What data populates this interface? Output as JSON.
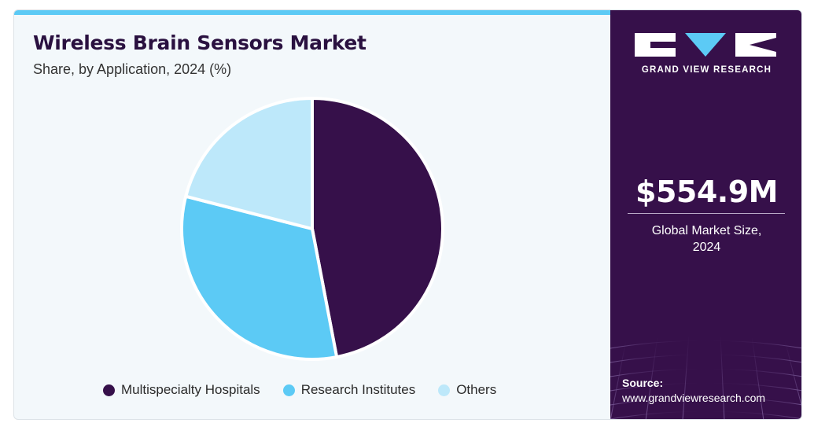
{
  "header": {
    "title": "Wireless Brain Sensors Market",
    "subtitle": "Share, by Application, 2024 (%)"
  },
  "colors": {
    "accent_bar": "#5ccaf5",
    "brand_dark": "#36104a",
    "panel_bg": "#f3f8fb"
  },
  "chart_data": {
    "type": "pie",
    "title": "Wireless Brain Sensors Market",
    "subtitle": "Share, by Application, 2024 (%)",
    "categories": [
      "Multispecialty Hospitals",
      "Research Institutes",
      "Others"
    ],
    "values": [
      47,
      32,
      21
    ],
    "colors": [
      "#36104a",
      "#5ccaf5",
      "#bde8fa"
    ],
    "legend_position": "bottom"
  },
  "legend": [
    {
      "label": "Multispecialty Hospitals",
      "color": "#36104a"
    },
    {
      "label": "Research Institutes",
      "color": "#5ccaf5"
    },
    {
      "label": "Others",
      "color": "#bde8fa"
    }
  ],
  "sidebar": {
    "brand": "GRAND VIEW RESEARCH",
    "market_size": "$554.9M",
    "caption_line1": "Global Market Size,",
    "caption_line2": "2024",
    "source_label": "Source:",
    "source_url": "www.grandviewresearch.com"
  }
}
